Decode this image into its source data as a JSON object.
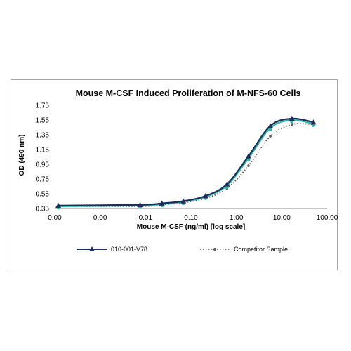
{
  "chart_data": {
    "type": "line",
    "title": "Mouse M-CSF Induced Proliferation of M-NFS-60 Cells",
    "xlabel": "Mouse M-CSF (ng/ml) [log scale]",
    "ylabel": "OD (490 nm)",
    "x_scale": "log",
    "x_tick_labels": [
      "0.00",
      "0.00",
      "0.01",
      "0.10",
      "1.00",
      "10.00",
      "100.00"
    ],
    "xlim": [
      0.0001,
      100
    ],
    "y_ticks": [
      "0.35",
      "0.55",
      "0.75",
      "0.95",
      "1.15",
      "1.35",
      "1.55",
      "1.75"
    ],
    "ylim": [
      0.35,
      1.75
    ],
    "grid": false,
    "legend_position": "bottom",
    "x": [
      0.00012,
      0.0076,
      0.023,
      0.068,
      0.21,
      0.62,
      1.85,
      5.6,
      16.7,
      50
    ],
    "series": [
      {
        "name": "010-001-V78",
        "color": "#1f2d5c",
        "marker": "triangle",
        "dash": "solid",
        "values": [
          0.39,
          0.4,
          0.42,
          0.45,
          0.52,
          0.68,
          1.06,
          1.47,
          1.57,
          1.52
        ]
      },
      {
        "name": "",
        "color": "#2fb8a0",
        "marker": "circle",
        "dash": "solid",
        "values": [
          0.38,
          0.39,
          0.41,
          0.44,
          0.51,
          0.66,
          1.03,
          1.44,
          1.55,
          1.5
        ]
      },
      {
        "name": "Competitor Sample",
        "color": "#595959",
        "marker": "circle",
        "dash": "dotted",
        "values": [
          0.38,
          0.38,
          0.4,
          0.43,
          0.49,
          0.62,
          0.93,
          1.33,
          1.49,
          1.49
        ]
      }
    ]
  }
}
